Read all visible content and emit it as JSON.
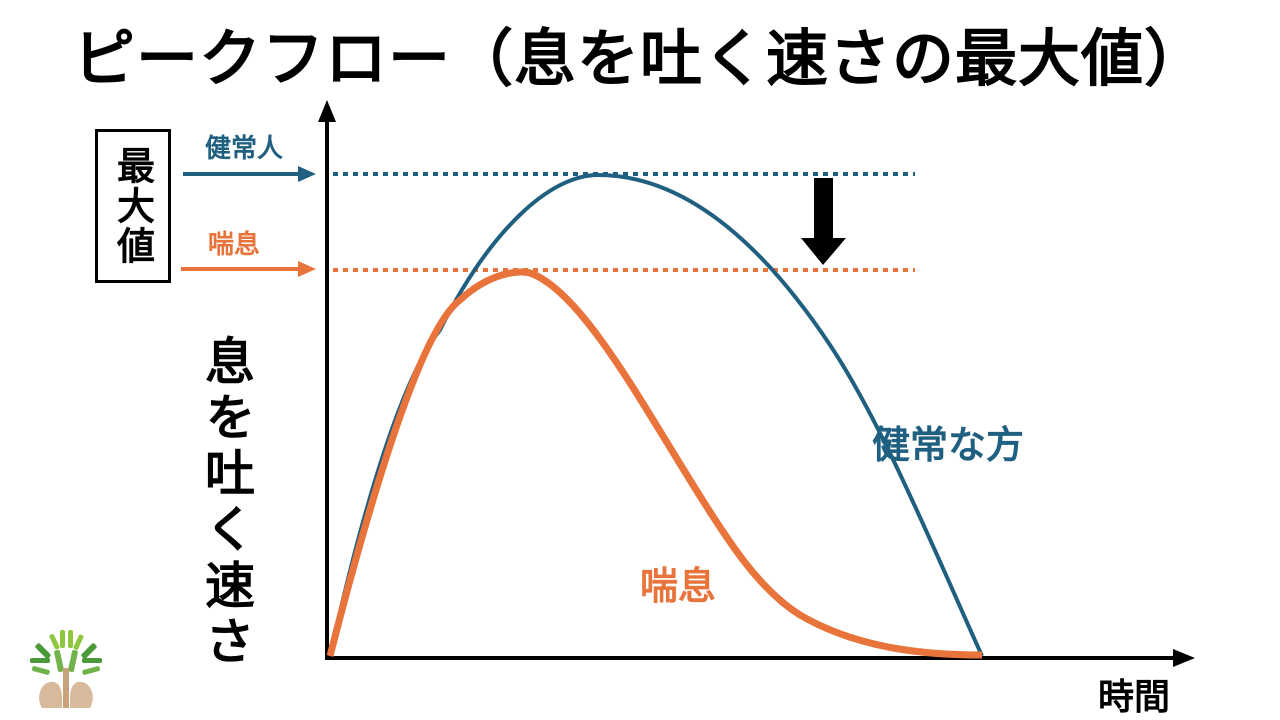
{
  "title": "ピークフロー（息を吐く速さの最大値）",
  "max_box_label": "最大値",
  "y_axis_label": "息を吐く速さ",
  "x_axis_label": "時間",
  "labels": {
    "healthy_small": "健常人",
    "asthma_small": "喘息",
    "healthy_curve": "健常な方",
    "asthma_curve": "喘息"
  },
  "colors": {
    "healthy": "#1f5f80",
    "asthma": "#e8743b",
    "axis": "#000000"
  },
  "icons": {
    "down_arrow": "down-arrow-icon",
    "logo": "tree-logo-icon"
  }
}
